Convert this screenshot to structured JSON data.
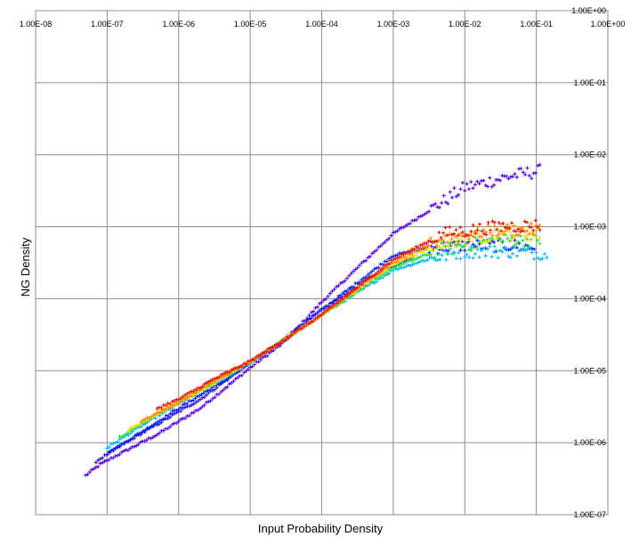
{
  "chart_data": {
    "type": "scatter",
    "title": "",
    "xlabel": "Input Probability Density",
    "ylabel": "NG Density",
    "x_scale": "log",
    "y_scale": "log",
    "xlim": [
      1e-08,
      1
    ],
    "ylim": [
      1e-07,
      1
    ],
    "grid": true,
    "x_tick_labels": [
      "1.00E-08",
      "1.00E-07",
      "1.00E-06",
      "1.00E-05",
      "1.00E-04",
      "1.00E-03",
      "1.00E-02",
      "1.00E-01",
      "1.00E+00"
    ],
    "y_tick_labels": [
      "1.00E-07",
      "1.00E-06",
      "1.00E-05",
      "1.00E-04",
      "1.00E-03",
      "1.00E-02",
      "1.00E-01",
      "1.00E+00"
    ],
    "marker": "+",
    "series": [
      {
        "color": "#5500ee",
        "x": [
          5e-08,
          8e-08,
          1.5e-07,
          5e-07,
          2e-06,
          1e-05,
          3e-05,
          0.0001,
          0.001,
          0.01,
          0.05,
          0.12
        ],
        "y": [
          3.5e-07,
          5e-07,
          7e-07,
          1.3e-06,
          3e-06,
          1.1e-05,
          2.5e-05,
          9e-05,
          0.0008,
          0.0035,
          0.0052,
          0.006
        ]
      },
      {
        "color": "#3311cc",
        "x": [
          7e-08,
          1.5e-07,
          5e-07,
          2e-06,
          1e-05,
          2.5e-05,
          0.0001,
          0.0005,
          0.002
        ],
        "y": [
          5.5e-07,
          9e-07,
          1.8e-06,
          4e-06,
          1.3e-05,
          2.4e-05,
          7e-05,
          0.0002,
          0.0004
        ]
      },
      {
        "color": "#0022ff",
        "x": [
          1e-07,
          3e-07,
          1e-06,
          5e-06,
          2.5e-05,
          0.0001,
          0.001,
          0.003,
          0.01,
          0.05,
          0.1
        ],
        "y": [
          7e-07,
          1.4e-06,
          3e-06,
          8e-06,
          2.4e-05,
          7e-05,
          0.0004,
          0.0005,
          0.00055,
          0.00055,
          0.0005
        ]
      },
      {
        "color": "#00bbff",
        "x": [
          1e-07,
          3e-07,
          1e-06,
          5e-06,
          2.5e-05,
          0.0001,
          0.001,
          0.003,
          0.01,
          0.05,
          0.15
        ],
        "y": [
          8.5e-07,
          1.7e-06,
          3.5e-06,
          8.5e-06,
          2.4e-05,
          6e-05,
          0.00025,
          0.00035,
          0.00045,
          0.00045,
          0.00042
        ]
      },
      {
        "color": "#22dd44",
        "x": [
          1.5e-07,
          5e-07,
          2e-06,
          1e-05,
          2.5e-05,
          0.0001,
          0.001,
          0.005,
          0.03,
          0.12
        ],
        "y": [
          1.2e-06,
          2.5e-06,
          5.5e-06,
          1.3e-05,
          2.4e-05,
          6e-05,
          0.00027,
          0.0005,
          0.00065,
          0.00065
        ]
      },
      {
        "color": "#ffdd00",
        "x": [
          2e-07,
          7e-07,
          3e-06,
          1e-05,
          2.5e-05,
          0.0001,
          0.001,
          0.005,
          0.03,
          0.12
        ],
        "y": [
          1.5e-06,
          3e-06,
          6.5e-06,
          1.35e-05,
          2.4e-05,
          6e-05,
          0.0003,
          0.0006,
          0.0008,
          0.0008
        ]
      },
      {
        "color": "#ff8800",
        "x": [
          3e-07,
          1e-06,
          3e-06,
          1e-05,
          2.5e-05,
          0.0001,
          0.001,
          0.005,
          0.03,
          0.12
        ],
        "y": [
          2e-06,
          3.6e-06,
          7e-06,
          1.35e-05,
          2.4e-05,
          6e-05,
          0.00032,
          0.0007,
          0.0009,
          0.0009
        ]
      },
      {
        "color": "#ee1100",
        "x": [
          5e-07,
          1e-06,
          3e-06,
          1e-05,
          2.5e-05,
          0.0001,
          0.001,
          0.005,
          0.03,
          0.12
        ],
        "y": [
          3e-06,
          4e-06,
          7.5e-06,
          1.35e-05,
          2.4e-05,
          6e-05,
          0.00035,
          0.0008,
          0.001,
          0.00105
        ]
      }
    ]
  }
}
